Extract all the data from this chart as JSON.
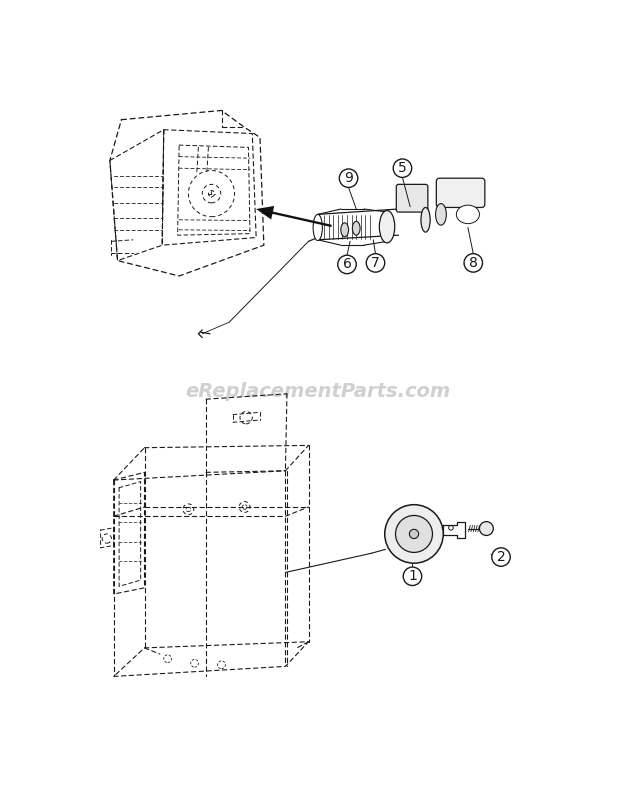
{
  "bg_color": "#ffffff",
  "watermark_text": "eReplacementParts.com",
  "watermark_color": "#d0d0d0",
  "line_color": "#1a1a1a",
  "dash_color": "#1a1a1a",
  "bubble_bg": "#ffffff",
  "bubble_edge": "#1a1a1a",
  "figsize": [
    6.2,
    7.92
  ],
  "dpi": 100
}
